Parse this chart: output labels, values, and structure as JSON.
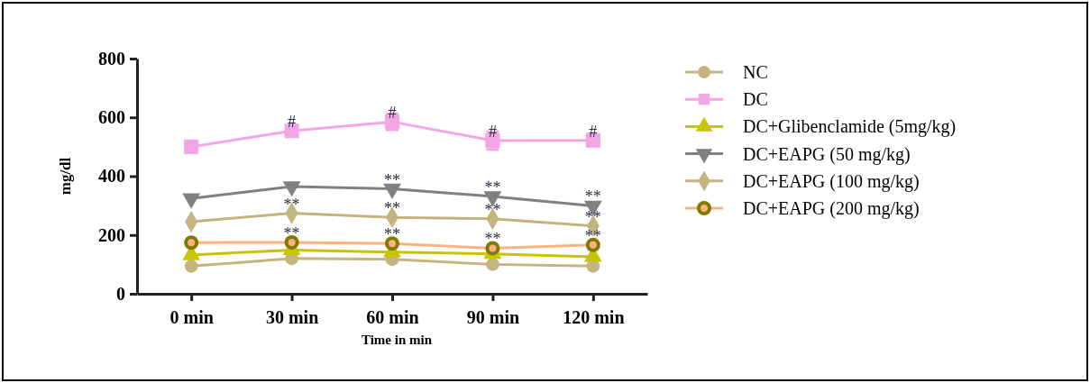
{
  "chart_data": {
    "type": "line",
    "xlabel": "Time in min",
    "ylabel": "mg/dl",
    "categories": [
      "0 min",
      "30 min",
      "60 min",
      "90 min",
      "120 min"
    ],
    "ylim": [
      0,
      800
    ],
    "yticks": [
      0,
      200,
      400,
      600,
      800
    ],
    "grid": false,
    "legend": "right",
    "series": [
      {
        "name": "NC",
        "color": "#c4b47f",
        "marker": "circle",
        "values": [
          94,
          120,
          117,
          100,
          94
        ]
      },
      {
        "name": "DC",
        "color": "#f4a6e4",
        "marker": "square",
        "values": [
          500,
          554,
          585,
          521,
          522
        ],
        "errors": [
          null,
          15,
          27,
          30,
          null
        ]
      },
      {
        "name": "DC+Glibenclamide (5mg/kg)",
        "color": "#c8c400",
        "marker": "triangle",
        "values": [
          132,
          149,
          142,
          136,
          126
        ]
      },
      {
        "name": "DC+EAPG (50 mg/kg)",
        "color": "#808080",
        "marker": "triangle-down",
        "values": [
          324,
          365,
          357,
          331,
          299
        ]
      },
      {
        "name": "DC+EAPG (100 mg/kg)",
        "color": "#c4b47f",
        "marker": "diamond",
        "values": [
          245,
          274,
          260,
          255,
          231
        ]
      },
      {
        "name": "DC+EAPG (200 mg/kg)",
        "color": "#ffb27f",
        "marker": "circle",
        "values": [
          174,
          175,
          171,
          155,
          166
        ]
      }
    ],
    "annotations": [
      {
        "text": "#",
        "x": "30 min",
        "y": 554
      },
      {
        "text": "#",
        "x": "60 min",
        "y": 585
      },
      {
        "text": "#",
        "x": "90 min",
        "y": 521
      },
      {
        "text": "#",
        "x": "120 min",
        "y": 522
      },
      {
        "text": "**",
        "x": "30 min",
        "y": 274
      },
      {
        "text": "**",
        "x": "30 min",
        "y": 175
      },
      {
        "text": "**",
        "x": "60 min",
        "y": 357
      },
      {
        "text": "**",
        "x": "60 min",
        "y": 260
      },
      {
        "text": "**",
        "x": "60 min",
        "y": 171
      },
      {
        "text": "**",
        "x": "90 min",
        "y": 331
      },
      {
        "text": "**",
        "x": "90 min",
        "y": 255
      },
      {
        "text": "**",
        "x": "90 min",
        "y": 155
      },
      {
        "text": "**",
        "x": "120 min",
        "y": 299
      },
      {
        "text": "**",
        "x": "120 min",
        "y": 231
      },
      {
        "text": "**",
        "x": "120 min",
        "y": 166
      }
    ]
  }
}
